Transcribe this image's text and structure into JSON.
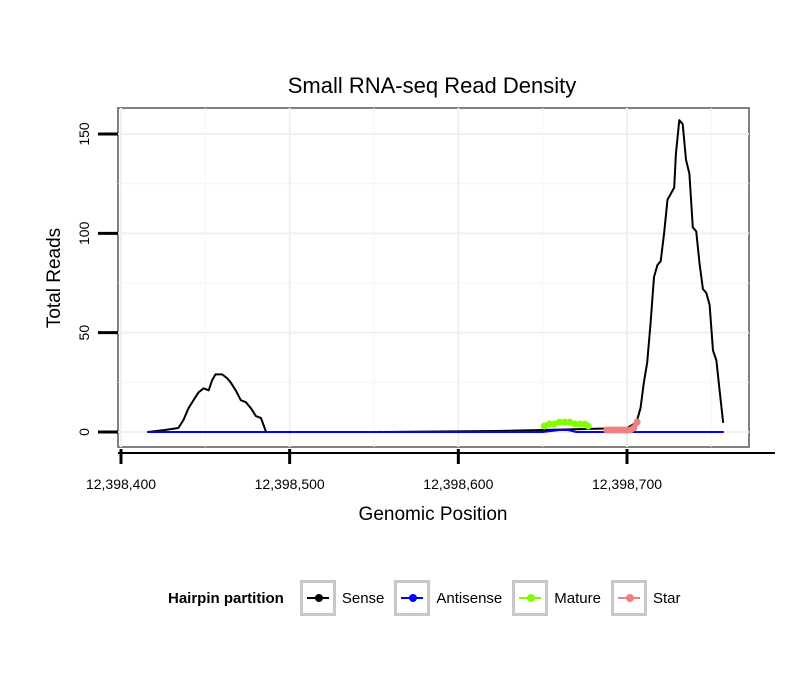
{
  "chart_data": {
    "type": "line",
    "title": "Small RNA-seq Read Density",
    "xlabel": "Genomic Position",
    "ylabel": "Total Reads",
    "xlim": [
      12398400,
      12398775
    ],
    "ylim": [
      -8,
      165
    ],
    "x_ticks": [
      12398400,
      12398500,
      12398600,
      12398700
    ],
    "x_tick_labels": [
      "12,398,400",
      "12,398,500",
      "12,398,600",
      "12,398,700"
    ],
    "y_ticks": [
      0,
      50,
      100,
      150
    ],
    "y_tick_labels": [
      "0",
      "50",
      "100",
      "150"
    ],
    "grid": true,
    "legend_position": "bottom",
    "series": [
      {
        "name": "Sense",
        "color": "#000000",
        "x": [
          12398416,
          12398426,
          12398434,
          12398437,
          12398440,
          12398443,
          12398446,
          12398449,
          12398452,
          12398454,
          12398456,
          12398460,
          12398463,
          12398465,
          12398468,
          12398471,
          12398474,
          12398477,
          12398480,
          12398483,
          12398486,
          12398500,
          12398550,
          12398622,
          12398650,
          12398700,
          12398704,
          12398706,
          12398708,
          12398710,
          12398712,
          12398714,
          12398716,
          12398718,
          12398720,
          12398722,
          12398724,
          12398726,
          12398728,
          12398729,
          12398731,
          12398733,
          12398735,
          12398737,
          12398739,
          12398741,
          12398743,
          12398745,
          12398747,
          12398749,
          12398751,
          12398753,
          12398755,
          12398757
        ],
        "values": [
          0,
          1,
          2,
          6,
          12,
          16,
          20,
          22,
          21,
          26,
          29,
          29,
          27,
          25,
          21,
          16,
          15,
          12,
          8,
          7,
          0,
          0,
          0,
          0.5,
          1,
          2,
          4,
          6,
          12,
          25,
          35,
          55,
          78,
          84,
          86,
          100,
          117,
          120,
          123,
          140,
          157,
          155,
          137,
          130,
          103,
          101,
          85,
          72,
          70,
          64,
          41,
          36,
          20,
          5
        ]
      },
      {
        "name": "Antisense",
        "color": "#0000ff",
        "x": [
          12398416,
          12398650,
          12398660,
          12398665,
          12398670,
          12398757
        ],
        "values": [
          0,
          0,
          1,
          1,
          0,
          0
        ]
      },
      {
        "name": "Mature",
        "color": "#80ff00",
        "x": [
          12398651,
          12398654,
          12398657,
          12398660,
          12398663,
          12398666,
          12398669,
          12398672,
          12398675,
          12398677
        ],
        "values": [
          3,
          4,
          4,
          5,
          5,
          5,
          4,
          4,
          4,
          3
        ]
      },
      {
        "name": "Star",
        "color": "#f08080",
        "x": [
          12398688,
          12398690,
          12398692,
          12398694,
          12398696,
          12398698,
          12398700,
          12398702,
          12398704,
          12398706
        ],
        "values": [
          1,
          1,
          1,
          1,
          1,
          1,
          1,
          1,
          2,
          5
        ]
      }
    ]
  },
  "legend": {
    "title": "Hairpin partition",
    "items": [
      {
        "label": "Sense",
        "color": "#000000"
      },
      {
        "label": "Antisense",
        "color": "#0000ff"
      },
      {
        "label": "Mature",
        "color": "#80ff00"
      },
      {
        "label": "Star",
        "color": "#f08080"
      }
    ]
  }
}
